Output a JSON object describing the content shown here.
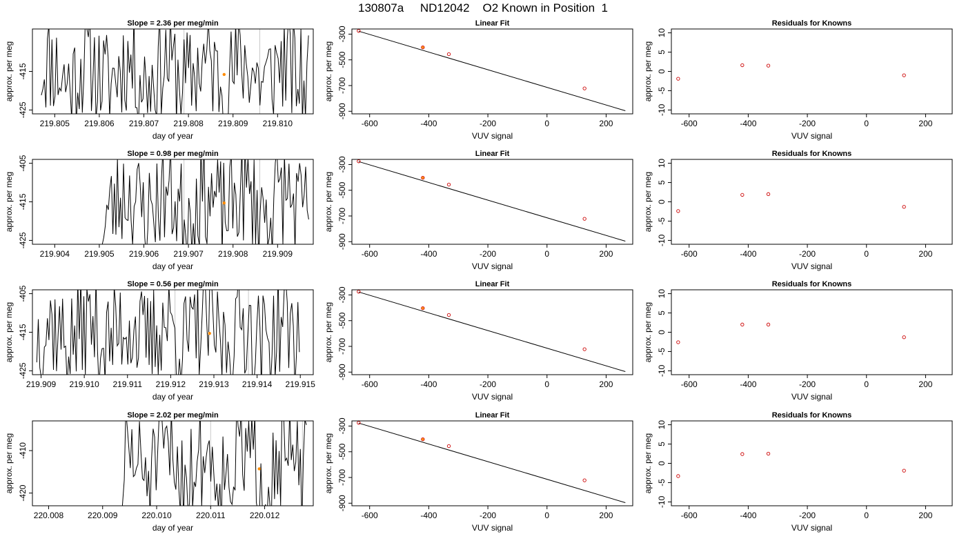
{
  "figure_title": "130807a     ND12042    O2 Known in Position  1",
  "colors": {
    "trace": "#000000",
    "marker_orange": "#ff8c00",
    "marker_red": "#cc0000",
    "vline": "#c8c8c8",
    "fit_line": "#000000"
  },
  "chart_data": [
    {
      "type": "line",
      "row": 0,
      "panel": "time-series",
      "title": "Slope =  2.36  per meg/min",
      "xlabel": "day of year",
      "ylabel": "approx. per meg",
      "xlim": [
        219.8045,
        219.8108
      ],
      "ylim": [
        -426,
        -404
      ],
      "xticks": [
        219.805,
        219.806,
        219.807,
        219.808,
        219.809,
        219.81
      ],
      "xtick_labels": [
        "219.805",
        "219.806",
        "219.807",
        "219.808",
        "219.809",
        "219.810"
      ],
      "yticks": [
        -415,
        -425
      ],
      "ytick_labels": [
        "-415",
        "-425"
      ],
      "trace_start": 219.8047,
      "trace_end": 219.8107,
      "seed": 11,
      "vlines": [
        219.8079,
        219.8096
      ],
      "marker": [
        219.8088,
        -415.8
      ]
    },
    {
      "type": "scatter",
      "row": 0,
      "panel": "linear-fit",
      "title": "Linear Fit",
      "xlabel": "VUV signal",
      "ylabel": "approx. per meg",
      "xlim": [
        -660,
        290
      ],
      "ylim": [
        -920,
        -260
      ],
      "xticks": [
        -600,
        -400,
        -200,
        0,
        200
      ],
      "xtick_labels": [
        "-600",
        "-400",
        "-200",
        "0",
        "200"
      ],
      "yticks": [
        -300,
        -500,
        -700,
        -900
      ],
      "ytick_labels": [
        "-300",
        "-500",
        "-700",
        "-900"
      ],
      "points": [
        [
          -637,
          -275
        ],
        [
          -420,
          -403
        ],
        [
          -332,
          -456
        ],
        [
          127,
          -722
        ]
      ],
      "orange_point": [
        -420,
        -403
      ],
      "fit_line": [
        [
          -637,
          -277
        ],
        [
          265,
          -896
        ]
      ]
    },
    {
      "type": "scatter",
      "row": 0,
      "panel": "residuals",
      "title": "Residuals for Knowns",
      "xlabel": "VUV signal",
      "ylabel": "approx. per meg",
      "xlim": [
        -660,
        290
      ],
      "ylim": [
        -11,
        11
      ],
      "xticks": [
        -600,
        -400,
        -200,
        0,
        200
      ],
      "xtick_labels": [
        "-600",
        "-400",
        "-200",
        "0",
        "200"
      ],
      "yticks": [
        10,
        5,
        0,
        -5,
        -10
      ],
      "ytick_labels": [
        "10",
        "5",
        "0",
        "-5",
        "-10"
      ],
      "points": [
        [
          -637,
          -1.9
        ],
        [
          -420,
          1.6
        ],
        [
          -332,
          1.5
        ],
        [
          127,
          -1.0
        ]
      ]
    },
    {
      "type": "line",
      "row": 1,
      "panel": "time-series",
      "title": "Slope =  0.98  per meg/min",
      "xlabel": "day of year",
      "ylabel": "approx. per meg",
      "xlim": [
        219.9035,
        219.9098
      ],
      "ylim": [
        -426,
        -404
      ],
      "xticks": [
        219.904,
        219.905,
        219.906,
        219.907,
        219.908,
        219.909
      ],
      "xtick_labels": [
        "219.904",
        "219.905",
        "219.906",
        "219.907",
        "219.908",
        "219.909"
      ],
      "yticks": [
        -405,
        -415,
        -425
      ],
      "ytick_labels": [
        "-405",
        "-415",
        "-425"
      ],
      "trace_start": 219.9051,
      "trace_end": 219.9097,
      "seed": 23,
      "vlines": [
        219.9069,
        219.9086
      ],
      "marker": [
        219.9078,
        -415.3
      ]
    },
    {
      "type": "scatter",
      "row": 1,
      "panel": "linear-fit",
      "title": "Linear Fit",
      "xlabel": "VUV signal",
      "ylabel": "approx. per meg",
      "xlim": [
        -660,
        290
      ],
      "ylim": [
        -920,
        -260
      ],
      "xticks": [
        -600,
        -400,
        -200,
        0,
        200
      ],
      "xtick_labels": [
        "-600",
        "-400",
        "-200",
        "0",
        "200"
      ],
      "yticks": [
        -300,
        -500,
        -700,
        -900
      ],
      "ytick_labels": [
        "-300",
        "-500",
        "-700",
        "-900"
      ],
      "points": [
        [
          -637,
          -275
        ],
        [
          -420,
          -403
        ],
        [
          -332,
          -456
        ],
        [
          127,
          -722
        ]
      ],
      "orange_point": [
        -420,
        -403
      ],
      "fit_line": [
        [
          -637,
          -277
        ],
        [
          265,
          -896
        ]
      ]
    },
    {
      "type": "scatter",
      "row": 1,
      "panel": "residuals",
      "title": "Residuals for Knowns",
      "xlabel": "VUV signal",
      "ylabel": "approx. per meg",
      "xlim": [
        -660,
        290
      ],
      "ylim": [
        -11,
        11
      ],
      "xticks": [
        -600,
        -400,
        -200,
        0,
        200
      ],
      "xtick_labels": [
        "-600",
        "-400",
        "-200",
        "0",
        "200"
      ],
      "yticks": [
        10,
        5,
        0,
        -5,
        -10
      ],
      "ytick_labels": [
        "10",
        "5",
        "0",
        "-5",
        "-10"
      ],
      "points": [
        [
          -637,
          -2.4
        ],
        [
          -420,
          1.8
        ],
        [
          -332,
          2.0
        ],
        [
          127,
          -1.3
        ]
      ]
    },
    {
      "type": "line",
      "row": 2,
      "panel": "time-series",
      "title": "Slope =  0.56  per meg/min",
      "xlabel": "day of year",
      "ylabel": "approx. per meg",
      "xlim": [
        219.9088,
        219.9153
      ],
      "ylim": [
        -426,
        -404
      ],
      "xticks": [
        219.909,
        219.91,
        219.911,
        219.912,
        219.913,
        219.914,
        219.915
      ],
      "xtick_labels": [
        "219.909",
        "219.910",
        "219.911",
        "219.912",
        "219.913",
        "219.914",
        "219.915"
      ],
      "yticks": [
        -405,
        -415,
        -425
      ],
      "ytick_labels": [
        "-405",
        "-415",
        "-425"
      ],
      "trace_start": 219.9089,
      "trace_end": 219.915,
      "seed": 37,
      "vlines": [
        219.9121,
        219.9138
      ],
      "marker": [
        219.9129,
        -415.3
      ]
    },
    {
      "type": "scatter",
      "row": 2,
      "panel": "linear-fit",
      "title": "Linear Fit",
      "xlabel": "VUV signal",
      "ylabel": "approx. per meg",
      "xlim": [
        -660,
        290
      ],
      "ylim": [
        -920,
        -260
      ],
      "xticks": [
        -600,
        -400,
        -200,
        0,
        200
      ],
      "xtick_labels": [
        "-600",
        "-400",
        "-200",
        "0",
        "200"
      ],
      "yticks": [
        -300,
        -500,
        -700,
        -900
      ],
      "ytick_labels": [
        "-300",
        "-500",
        "-700",
        "-900"
      ],
      "points": [
        [
          -637,
          -275
        ],
        [
          -420,
          -403
        ],
        [
          -332,
          -456
        ],
        [
          127,
          -722
        ]
      ],
      "orange_point": [
        -420,
        -403
      ],
      "fit_line": [
        [
          -637,
          -277
        ],
        [
          265,
          -896
        ]
      ]
    },
    {
      "type": "scatter",
      "row": 2,
      "panel": "residuals",
      "title": "Residuals for Knowns",
      "xlabel": "VUV signal",
      "ylabel": "approx. per meg",
      "xlim": [
        -660,
        290
      ],
      "ylim": [
        -11,
        11
      ],
      "xticks": [
        -600,
        -400,
        -200,
        0,
        200
      ],
      "xtick_labels": [
        "-600",
        "-400",
        "-200",
        "0",
        "200"
      ],
      "yticks": [
        10,
        5,
        0,
        -5,
        -10
      ],
      "ytick_labels": [
        "10",
        "5",
        "0",
        "-5",
        "-10"
      ],
      "points": [
        [
          -637,
          -2.6
        ],
        [
          -420,
          2.0
        ],
        [
          -332,
          2.0
        ],
        [
          127,
          -1.3
        ]
      ]
    },
    {
      "type": "line",
      "row": 3,
      "panel": "time-series",
      "title": "Slope =  2.02  per meg/min",
      "xlabel": "day of year",
      "ylabel": "approx. per meg",
      "xlim": [
        220.0077,
        220.0129
      ],
      "ylim": [
        -423,
        -403
      ],
      "xticks": [
        220.008,
        220.009,
        220.01,
        220.011,
        220.012
      ],
      "xtick_labels": [
        "220.008",
        "220.009",
        "220.010",
        "220.011",
        "220.012"
      ],
      "yticks": [
        -410,
        -420
      ],
      "ytick_labels": [
        "-410",
        "-420"
      ],
      "trace_start": 220.0094,
      "trace_end": 220.0128,
      "seed": 51,
      "vlines": [
        220.011,
        220.0127
      ],
      "marker": [
        220.0119,
        -414.3
      ]
    },
    {
      "type": "scatter",
      "row": 3,
      "panel": "linear-fit",
      "title": "Linear Fit",
      "xlabel": "VUV signal",
      "ylabel": "approx. per meg",
      "xlim": [
        -660,
        290
      ],
      "ylim": [
        -920,
        -260
      ],
      "xticks": [
        -600,
        -400,
        -200,
        0,
        200
      ],
      "xtick_labels": [
        "-600",
        "-400",
        "-200",
        "0",
        "200"
      ],
      "yticks": [
        -300,
        -500,
        -700,
        -900
      ],
      "ytick_labels": [
        "-300",
        "-500",
        "-700",
        "-900"
      ],
      "points": [
        [
          -637,
          -275
        ],
        [
          -420,
          -403
        ],
        [
          -332,
          -456
        ],
        [
          127,
          -722
        ]
      ],
      "orange_point": [
        -420,
        -403
      ],
      "fit_line": [
        [
          -637,
          -277
        ],
        [
          265,
          -896
        ]
      ]
    },
    {
      "type": "scatter",
      "row": 3,
      "panel": "residuals",
      "title": "Residuals for Knowns",
      "xlabel": "VUV signal",
      "ylabel": "approx. per meg",
      "xlim": [
        -660,
        290
      ],
      "ylim": [
        -11,
        11
      ],
      "xticks": [
        -600,
        -400,
        -200,
        0,
        200
      ],
      "xtick_labels": [
        "-600",
        "-400",
        "-200",
        "0",
        "200"
      ],
      "yticks": [
        10,
        5,
        0,
        -5,
        -10
      ],
      "ytick_labels": [
        "10",
        "5",
        "0",
        "-5",
        "-10"
      ],
      "points": [
        [
          -637,
          -3.3
        ],
        [
          -420,
          2.4
        ],
        [
          -332,
          2.5
        ],
        [
          127,
          -1.9
        ]
      ]
    }
  ]
}
